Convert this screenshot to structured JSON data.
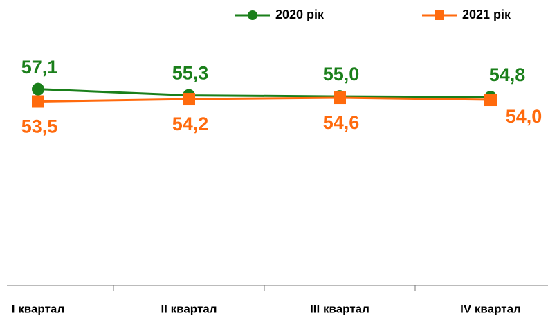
{
  "chart_data": {
    "type": "line",
    "categories": [
      "I квартал",
      "II квартал",
      "III квартал",
      "IV квартал"
    ],
    "series": [
      {
        "name": "2020 рік",
        "color": "#1a7f1a",
        "marker": "circle",
        "values": [
          57.1,
          55.3,
          55.0,
          54.8
        ],
        "value_labels": [
          "57,1",
          "55,3",
          "55,0",
          "54,8"
        ]
      },
      {
        "name": "2021 рік",
        "color": "#ff6a0d",
        "marker": "square",
        "values": [
          53.5,
          54.2,
          54.6,
          54.0
        ],
        "value_labels": [
          "53,5",
          "54,2",
          "54,6",
          "54,0"
        ]
      }
    ],
    "ylim": [
      0,
      80
    ],
    "legend": "top-right"
  }
}
